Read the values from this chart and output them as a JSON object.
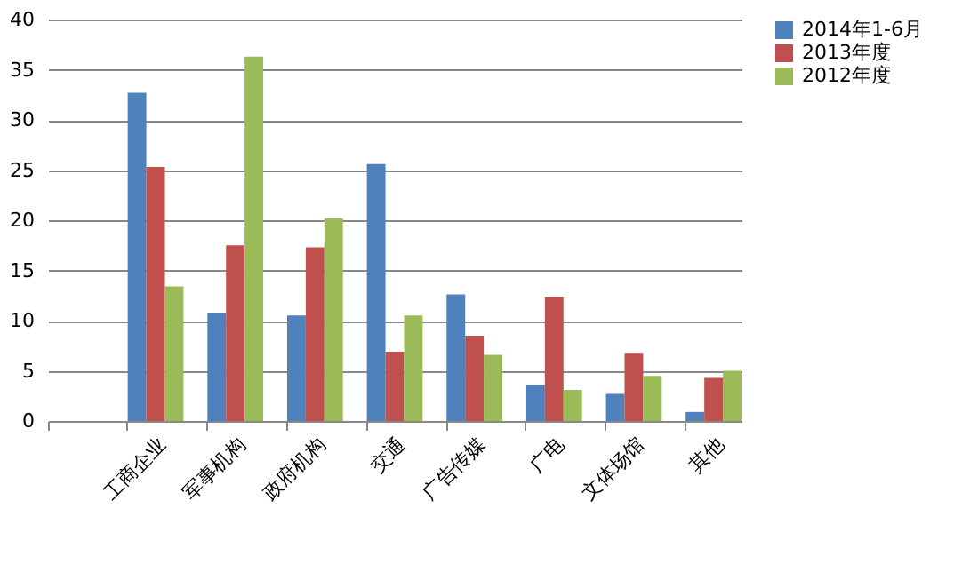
{
  "chart_data": {
    "type": "bar",
    "categories": [
      null,
      "工商企业",
      "军事机构",
      "政府机构",
      "交通",
      "广告传媒",
      "广电",
      "文体场馆",
      "其他"
    ],
    "series": [
      {
        "name": "2014年1-6月",
        "color": "#4f81bd",
        "values": [
          null,
          32.7,
          10.8,
          10.5,
          25.6,
          12.6,
          3.6,
          2.7,
          0.9
        ]
      },
      {
        "name": "2013年度",
        "color": "#c0504d",
        "values": [
          null,
          25.3,
          17.5,
          17.3,
          6.9,
          8.5,
          12.4,
          6.8,
          4.3
        ]
      },
      {
        "name": "2012年度",
        "color": "#9bbb59",
        "values": [
          null,
          13.4,
          36.3,
          20.2,
          10.5,
          6.6,
          3.1,
          4.5,
          5.0
        ]
      }
    ],
    "ylim": [
      0,
      40
    ],
    "yticks": [
      0,
      5,
      10,
      15,
      20,
      25,
      30,
      35,
      40
    ],
    "grid": "y",
    "legend": "right"
  }
}
